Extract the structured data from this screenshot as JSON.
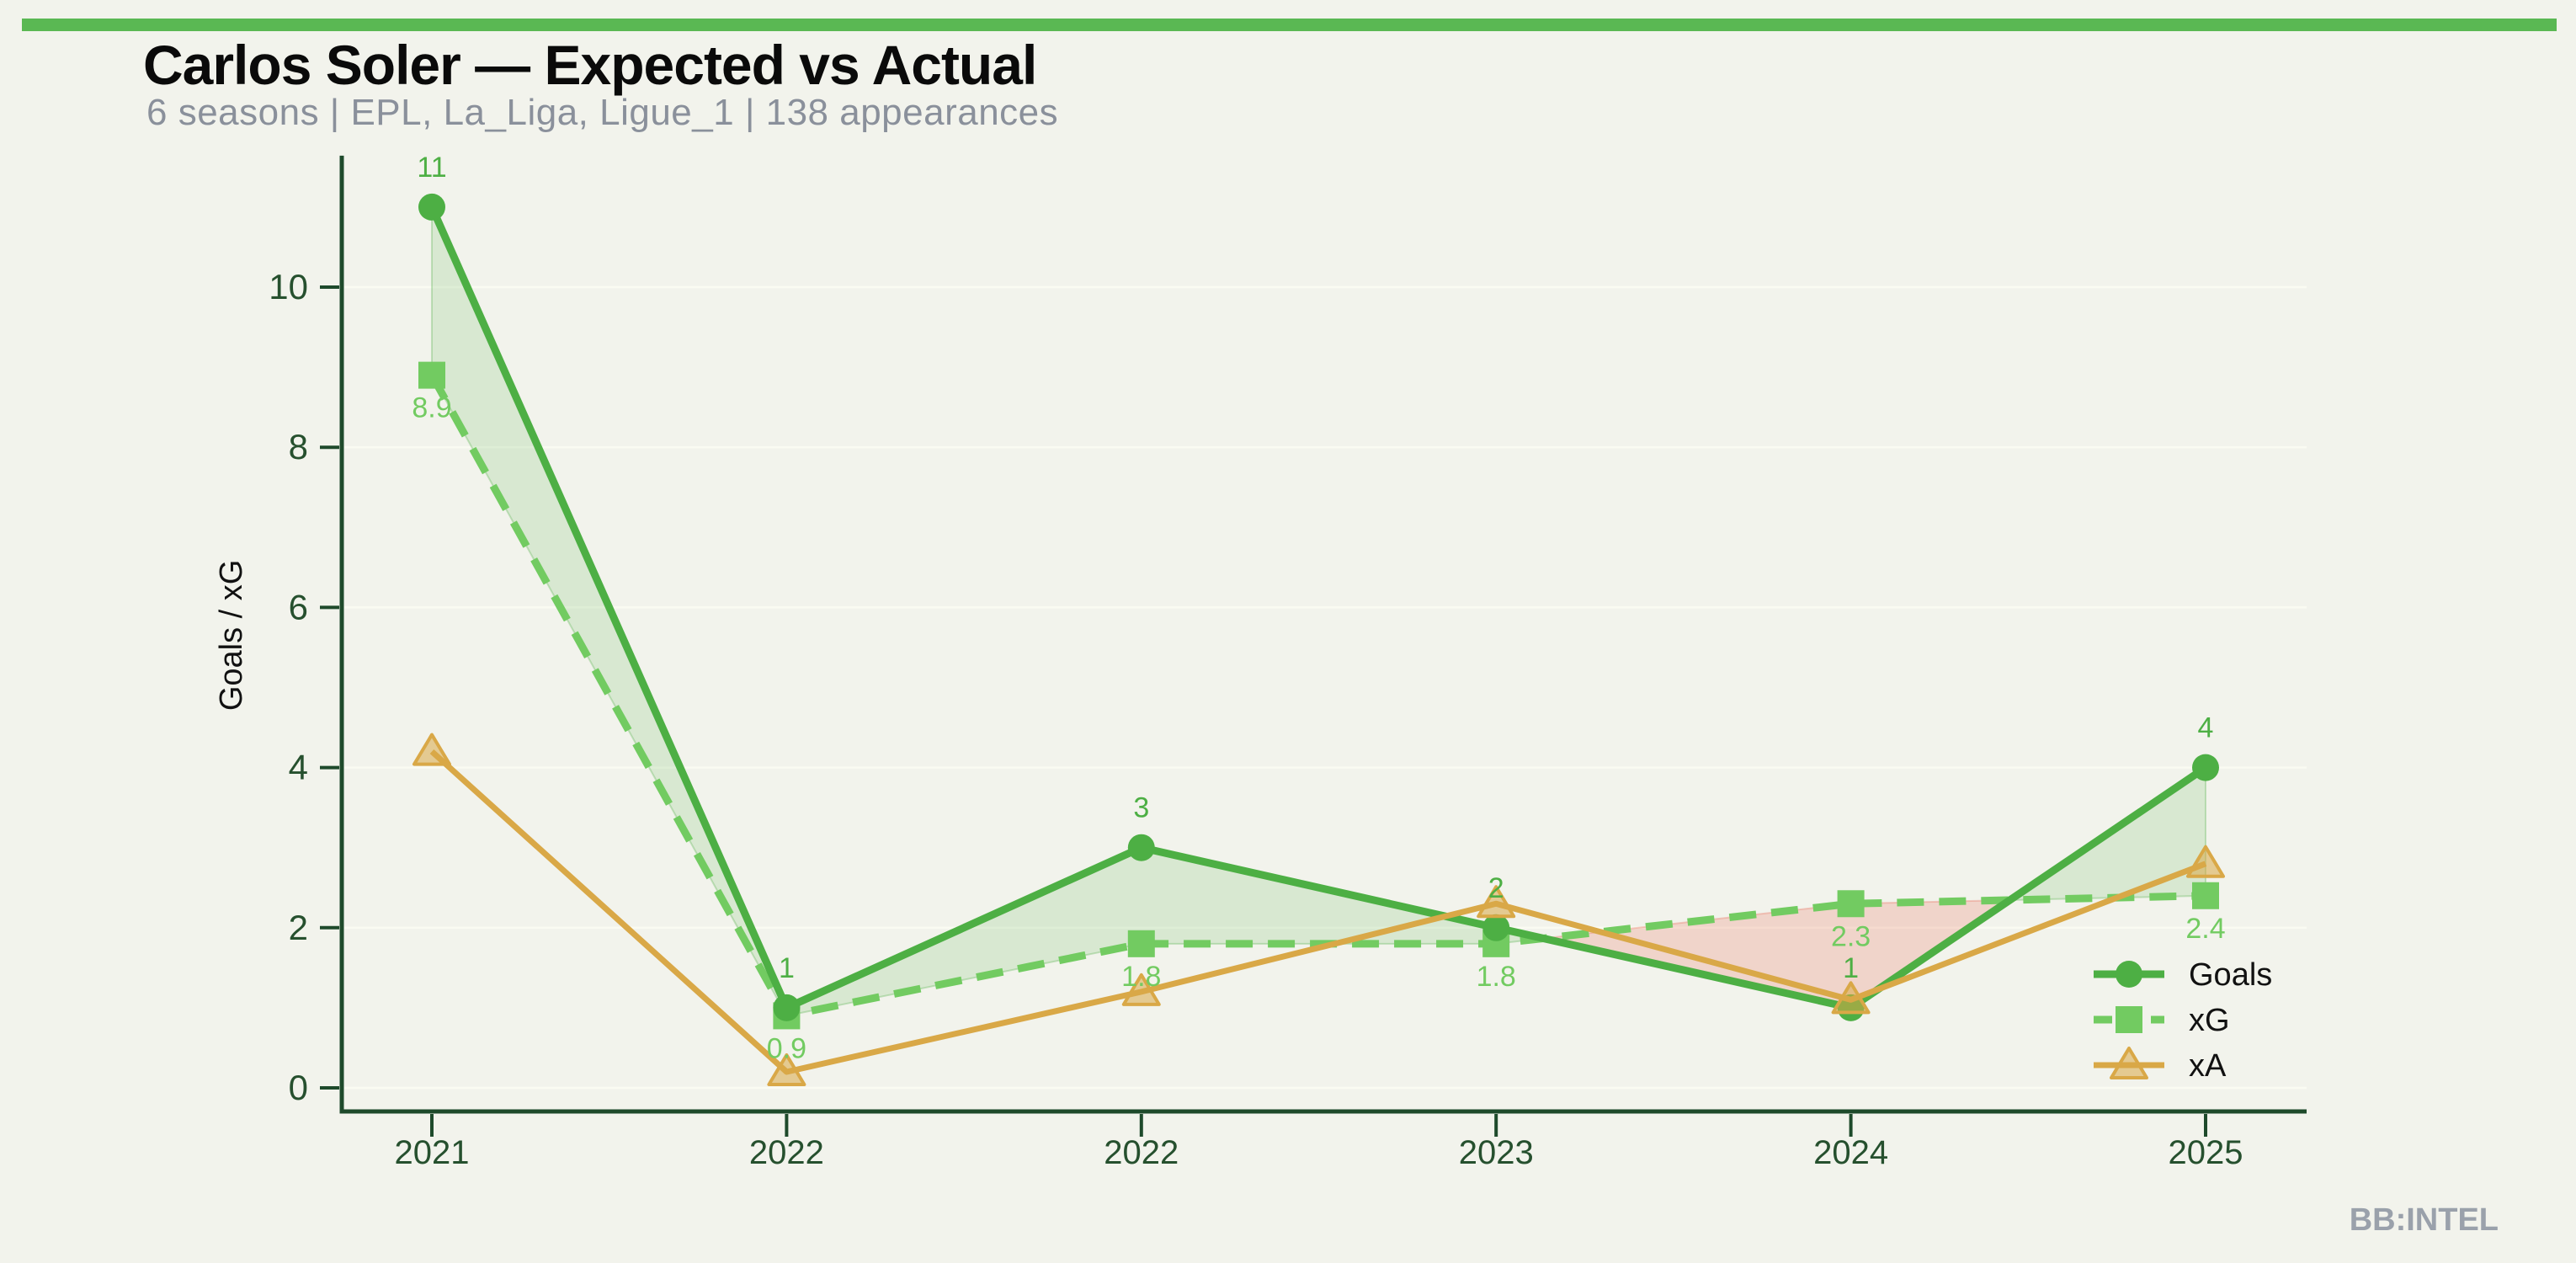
{
  "header": {
    "title": "Carlos Soler — Expected vs Actual",
    "subtitle": "6 seasons | EPL, La_Liga, Ligue_1 | 138 appearances"
  },
  "watermark": "BB:INTEL",
  "colors": {
    "background": "#f2f3ec",
    "accent_bar": "#5ab853",
    "title_text": "#0a0a0a",
    "subtitle_text": "#8a909b",
    "axis_dark_green": "#1e4a2b",
    "tick_label_green": "#26502e",
    "gridline": "#fafbf2",
    "goals_green": "#4daf44",
    "xg_green": "#72cb61",
    "xa_gold": "#d9a847",
    "fill_over": "rgba(79,174,69,0.16)",
    "fill_under": "rgba(231,104,84,0.22)",
    "fill_over_edge": "rgba(79,174,69,0.30)",
    "fill_under_edge": "rgba(231,104,84,0.30)",
    "legend_text": "#111111",
    "ylabel_text": "#111111",
    "watermark_text": "#9aa1ab"
  },
  "chart_data": {
    "type": "line",
    "title": "Carlos Soler — Expected vs Actual",
    "subtitle": "6 seasons | EPL, La_Liga, Ligue_1 | 138 appearances",
    "categories": [
      "2021",
      "2022",
      "2022",
      "2023",
      "2024",
      "2025"
    ],
    "series": [
      {
        "name": "Goals",
        "values": [
          11,
          1,
          3,
          2,
          1,
          4
        ],
        "point_labels": [
          "11",
          "1",
          "3",
          "2",
          "1",
          "4"
        ],
        "color": "#4daf44",
        "line_style": "solid",
        "marker": "circle"
      },
      {
        "name": "xG",
        "values": [
          8.9,
          0.9,
          1.8,
          1.8,
          2.3,
          2.4
        ],
        "point_labels": [
          "8.9",
          "0.9",
          "1.8",
          "1.8",
          "2.3",
          "2.4"
        ],
        "color": "#72cb61",
        "line_style": "dashed",
        "marker": "square"
      },
      {
        "name": "xA",
        "values": [
          4.2,
          0.2,
          1.2,
          2.3,
          1.1,
          2.8
        ],
        "point_labels": null,
        "color": "#d9a847",
        "line_style": "solid",
        "marker": "triangle"
      }
    ],
    "xlabel": "",
    "ylabel": "Goals / xG",
    "yticks": [
      0,
      2,
      4,
      6,
      8,
      10
    ],
    "ylim": [
      0,
      11.6
    ],
    "grid": "horizontal",
    "legend_position": "lower right",
    "fill_between": {
      "upper": "Goals",
      "lower": "xG",
      "over_color": "rgba(79,174,69,0.16)",
      "under_color": "rgba(231,104,84,0.22)"
    }
  }
}
